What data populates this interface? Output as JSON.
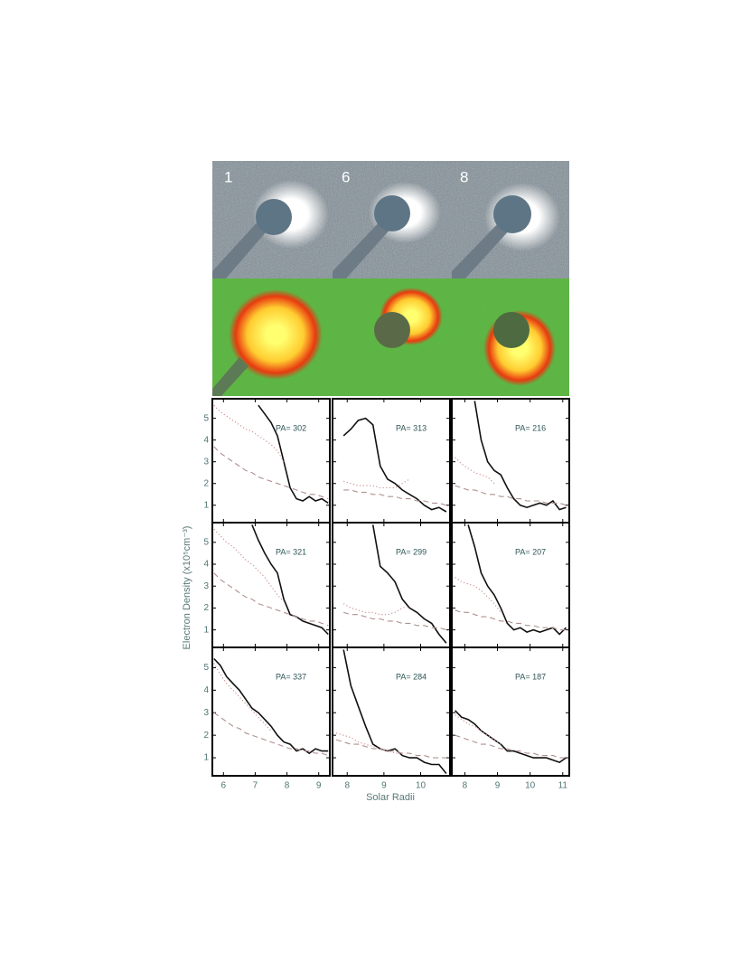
{
  "figure": {
    "image_labels": [
      "1",
      "6",
      "8"
    ],
    "ylabel": "Electron Density (x10⁵cm⁻³)",
    "xlabel": "Solar Radii"
  },
  "chart_data": [
    {
      "type": "line",
      "annotation": "PA= 302",
      "x": [
        5.7,
        5.9,
        6.1,
        6.3,
        6.5,
        6.7,
        6.9,
        7.1,
        7.3,
        7.5,
        7.7,
        7.9,
        8.1,
        8.3,
        8.5,
        8.7,
        8.9,
        9.1,
        9.3
      ],
      "series": [
        {
          "color": "#111111",
          "style": "solid",
          "values": [
            null,
            null,
            null,
            null,
            null,
            null,
            null,
            5.6,
            5.2,
            4.8,
            4.2,
            3.0,
            1.8,
            1.3,
            1.2,
            1.4,
            1.2,
            1.3,
            1.1
          ]
        },
        {
          "color": "#c98a8a",
          "style": "dotted",
          "values": [
            5.6,
            5.3,
            5.1,
            4.9,
            4.7,
            4.5,
            4.4,
            4.2,
            4.0,
            3.8,
            3.5,
            3.0,
            null,
            null,
            null,
            null,
            null,
            null,
            null
          ]
        },
        {
          "color": "#b09090",
          "style": "dashed",
          "values": [
            3.7,
            3.4,
            3.2,
            3.0,
            2.8,
            2.6,
            2.5,
            2.3,
            2.2,
            2.1,
            2.0,
            1.9,
            1.8,
            1.7,
            1.6,
            1.5,
            1.5,
            1.4,
            1.3
          ]
        }
      ],
      "xlim": [
        5.65,
        9.35
      ],
      "ylim": [
        0.2,
        5.9
      ],
      "xticks": [
        6,
        7,
        8,
        9
      ],
      "yticks": [
        1,
        2,
        3,
        4,
        5
      ],
      "show_xtick_labels": false,
      "show_ytick_labels": true
    },
    {
      "type": "line",
      "annotation": "PA= 313",
      "x": [
        7.7,
        7.9,
        8.1,
        8.3,
        8.5,
        8.7,
        8.9,
        9.1,
        9.3,
        9.5,
        9.7,
        9.9,
        10.1,
        10.3,
        10.5,
        10.7
      ],
      "series": [
        {
          "color": "#111111",
          "style": "solid",
          "values": [
            null,
            4.2,
            4.5,
            4.9,
            5.0,
            4.7,
            2.8,
            2.2,
            2.0,
            1.7,
            1.5,
            1.3,
            1.0,
            0.8,
            0.9,
            0.7
          ]
        },
        {
          "color": "#c98a8a",
          "style": "dotted",
          "values": [
            null,
            2.1,
            2.0,
            1.9,
            1.9,
            1.9,
            1.8,
            1.8,
            1.8,
            2.0,
            2.2,
            null,
            null,
            null,
            null,
            null
          ]
        },
        {
          "color": "#b09090",
          "style": "dashed",
          "values": [
            null,
            1.7,
            1.7,
            1.6,
            1.6,
            1.5,
            1.5,
            1.4,
            1.4,
            1.3,
            1.3,
            1.2,
            1.2,
            1.1,
            1.1,
            1.0
          ]
        }
      ],
      "xlim": [
        7.6,
        10.8
      ],
      "ylim": [
        0.2,
        5.9
      ],
      "xticks": [
        8,
        9,
        10
      ],
      "yticks": [
        1,
        2,
        3,
        4,
        5
      ],
      "show_xtick_labels": false,
      "show_ytick_labels": false
    },
    {
      "type": "line",
      "annotation": "PA= 216",
      "x": [
        7.7,
        7.9,
        8.1,
        8.3,
        8.5,
        8.7,
        8.9,
        9.1,
        9.3,
        9.5,
        9.7,
        9.9,
        10.1,
        10.3,
        10.5,
        10.7,
        10.9,
        11.1
      ],
      "series": [
        {
          "color": "#111111",
          "style": "solid",
          "values": [
            null,
            null,
            null,
            5.8,
            4.0,
            3.0,
            2.6,
            2.4,
            1.8,
            1.3,
            1.0,
            0.9,
            1.0,
            1.1,
            1.0,
            1.2,
            0.8,
            0.9
          ]
        },
        {
          "color": "#c98a8a",
          "style": "dotted",
          "values": [
            3.2,
            2.9,
            2.7,
            2.5,
            2.4,
            2.3,
            2.0,
            null,
            null,
            null,
            null,
            null,
            null,
            null,
            null,
            null,
            null,
            null
          ]
        },
        {
          "color": "#b09090",
          "style": "dashed",
          "values": [
            1.9,
            1.8,
            1.7,
            1.7,
            1.6,
            1.5,
            1.5,
            1.4,
            1.4,
            1.3,
            1.3,
            1.2,
            1.2,
            1.2,
            1.1,
            1.1,
            1.1,
            1.0
          ]
        }
      ],
      "xlim": [
        7.6,
        11.2
      ],
      "ylim": [
        0.2,
        5.9
      ],
      "xticks": [
        8,
        9,
        10,
        11
      ],
      "yticks": [
        1,
        2,
        3,
        4,
        5
      ],
      "show_xtick_labels": false,
      "show_ytick_labels": false
    },
    {
      "type": "line",
      "annotation": "PA= 321",
      "x": [
        5.7,
        5.9,
        6.1,
        6.3,
        6.5,
        6.7,
        6.9,
        7.1,
        7.3,
        7.5,
        7.7,
        7.9,
        8.1,
        8.3,
        8.5,
        8.7,
        8.9,
        9.1,
        9.3
      ],
      "series": [
        {
          "color": "#111111",
          "style": "solid",
          "values": [
            null,
            null,
            null,
            null,
            null,
            null,
            5.8,
            5.1,
            4.5,
            4.0,
            3.6,
            2.4,
            1.7,
            1.6,
            1.4,
            1.3,
            1.2,
            1.1,
            0.8
          ]
        },
        {
          "color": "#c98a8a",
          "style": "dotted",
          "values": [
            5.6,
            5.3,
            5.0,
            4.8,
            4.5,
            4.2,
            4.0,
            3.7,
            3.4,
            3.0,
            2.6,
            2.3,
            null,
            null,
            null,
            null,
            null,
            null,
            null
          ]
        },
        {
          "color": "#b09090",
          "style": "dashed",
          "values": [
            3.6,
            3.3,
            3.1,
            2.9,
            2.7,
            2.5,
            2.4,
            2.2,
            2.1,
            2.0,
            1.9,
            1.8,
            1.7,
            1.6,
            1.5,
            1.4,
            1.4,
            1.3,
            1.2
          ]
        }
      ],
      "xlim": [
        5.65,
        9.35
      ],
      "ylim": [
        0.2,
        5.9
      ],
      "xticks": [
        6,
        7,
        8,
        9
      ],
      "yticks": [
        1,
        2,
        3,
        4,
        5
      ],
      "show_xtick_labels": false,
      "show_ytick_labels": true
    },
    {
      "type": "line",
      "annotation": "PA= 299",
      "x": [
        7.7,
        7.9,
        8.1,
        8.3,
        8.5,
        8.7,
        8.9,
        9.1,
        9.3,
        9.5,
        9.7,
        9.9,
        10.1,
        10.3,
        10.5,
        10.7
      ],
      "series": [
        {
          "color": "#111111",
          "style": "solid",
          "values": [
            null,
            null,
            null,
            null,
            null,
            5.8,
            3.9,
            3.6,
            3.2,
            2.4,
            2.0,
            1.8,
            1.5,
            1.3,
            0.8,
            0.4
          ]
        },
        {
          "color": "#c98a8a",
          "style": "dotted",
          "values": [
            null,
            2.2,
            2.0,
            1.9,
            1.8,
            1.8,
            1.7,
            1.7,
            1.8,
            2.0,
            2.1,
            null,
            null,
            null,
            null,
            null
          ]
        },
        {
          "color": "#b09090",
          "style": "dashed",
          "values": [
            null,
            1.8,
            1.7,
            1.7,
            1.6,
            1.5,
            1.5,
            1.4,
            1.4,
            1.3,
            1.3,
            1.2,
            1.2,
            1.1,
            1.1,
            1.0
          ]
        }
      ],
      "xlim": [
        7.6,
        10.8
      ],
      "ylim": [
        0.2,
        5.9
      ],
      "xticks": [
        8,
        9,
        10
      ],
      "yticks": [
        1,
        2,
        3,
        4,
        5
      ],
      "show_xtick_labels": false,
      "show_ytick_labels": false
    },
    {
      "type": "line",
      "annotation": "PA= 207",
      "x": [
        7.7,
        7.9,
        8.1,
        8.3,
        8.5,
        8.7,
        8.9,
        9.1,
        9.3,
        9.5,
        9.7,
        9.9,
        10.1,
        10.3,
        10.5,
        10.7,
        10.9,
        11.1
      ],
      "series": [
        {
          "color": "#111111",
          "style": "solid",
          "values": [
            null,
            null,
            5.8,
            4.8,
            3.6,
            3.0,
            2.6,
            2.0,
            1.3,
            1.0,
            1.1,
            0.9,
            1.0,
            0.9,
            1.0,
            1.1,
            0.8,
            1.1
          ]
        },
        {
          "color": "#c98a8a",
          "style": "dotted",
          "values": [
            3.4,
            3.2,
            3.1,
            3.0,
            2.8,
            2.5,
            2.2,
            1.8,
            null,
            null,
            null,
            null,
            null,
            null,
            null,
            null,
            null,
            null
          ]
        },
        {
          "color": "#b09090",
          "style": "dashed",
          "values": [
            1.9,
            1.8,
            1.8,
            1.7,
            1.6,
            1.6,
            1.5,
            1.4,
            1.4,
            1.3,
            1.3,
            1.2,
            1.2,
            1.1,
            1.1,
            1.1,
            1.0,
            1.0
          ]
        }
      ],
      "xlim": [
        7.6,
        11.2
      ],
      "ylim": [
        0.2,
        5.9
      ],
      "xticks": [
        8,
        9,
        10,
        11
      ],
      "yticks": [
        1,
        2,
        3,
        4,
        5
      ],
      "show_xtick_labels": false,
      "show_ytick_labels": false
    },
    {
      "type": "line",
      "annotation": "PA= 337",
      "x": [
        5.7,
        5.9,
        6.1,
        6.3,
        6.5,
        6.7,
        6.9,
        7.1,
        7.3,
        7.5,
        7.7,
        7.9,
        8.1,
        8.3,
        8.5,
        8.7,
        8.9,
        9.1,
        9.3
      ],
      "series": [
        {
          "color": "#111111",
          "style": "solid",
          "values": [
            5.4,
            5.1,
            4.6,
            4.3,
            4.0,
            3.6,
            3.2,
            3.0,
            2.7,
            2.4,
            2.0,
            1.7,
            1.6,
            1.3,
            1.4,
            1.2,
            1.4,
            1.3,
            1.3
          ]
        },
        {
          "color": "#c98a8a",
          "style": "dotted",
          "values": [
            5.2,
            4.7,
            4.3,
            4.0,
            3.7,
            3.4,
            3.1,
            2.8,
            2.5,
            2.2,
            null,
            null,
            null,
            null,
            null,
            null,
            null,
            null,
            null
          ]
        },
        {
          "color": "#b09090",
          "style": "dashed",
          "values": [
            3.0,
            2.8,
            2.6,
            2.4,
            2.3,
            2.1,
            2.0,
            1.9,
            1.8,
            1.7,
            1.6,
            1.5,
            1.4,
            1.4,
            1.3,
            1.3,
            1.2,
            1.2,
            1.1
          ]
        }
      ],
      "xlim": [
        5.65,
        9.35
      ],
      "ylim": [
        0.2,
        5.9
      ],
      "xticks": [
        6,
        7,
        8,
        9
      ],
      "yticks": [
        1,
        2,
        3,
        4,
        5
      ],
      "show_xtick_labels": true,
      "show_ytick_labels": true
    },
    {
      "type": "line",
      "annotation": "PA= 284",
      "x": [
        7.7,
        7.9,
        8.1,
        8.3,
        8.5,
        8.7,
        8.9,
        9.1,
        9.3,
        9.5,
        9.7,
        9.9,
        10.1,
        10.3,
        10.5,
        10.7
      ],
      "series": [
        {
          "color": "#111111",
          "style": "solid",
          "values": [
            null,
            5.8,
            4.2,
            3.3,
            2.4,
            1.6,
            1.4,
            1.3,
            1.4,
            1.1,
            1.0,
            1.0,
            0.8,
            0.7,
            0.7,
            0.3
          ]
        },
        {
          "color": "#c98a8a",
          "style": "dotted",
          "values": [
            2.1,
            2.0,
            1.9,
            1.7,
            1.6,
            1.5,
            1.4,
            1.3,
            1.2,
            1.2,
            null,
            null,
            null,
            null,
            null,
            null
          ]
        },
        {
          "color": "#b09090",
          "style": "dashed",
          "values": [
            1.8,
            1.7,
            1.6,
            1.6,
            1.5,
            1.4,
            1.4,
            1.3,
            1.3,
            1.2,
            1.2,
            1.1,
            1.1,
            1.0,
            1.0,
            1.0
          ]
        }
      ],
      "xlim": [
        7.6,
        10.8
      ],
      "ylim": [
        0.2,
        5.9
      ],
      "xticks": [
        8,
        9,
        10
      ],
      "yticks": [
        1,
        2,
        3,
        4,
        5
      ],
      "show_xtick_labels": true,
      "show_ytick_labels": false
    },
    {
      "type": "line",
      "annotation": "PA= 187",
      "x": [
        7.7,
        7.9,
        8.1,
        8.3,
        8.5,
        8.7,
        8.9,
        9.1,
        9.3,
        9.5,
        9.7,
        9.9,
        10.1,
        10.3,
        10.5,
        10.7,
        10.9,
        11.1
      ],
      "series": [
        {
          "color": "#111111",
          "style": "solid",
          "values": [
            3.1,
            2.8,
            2.7,
            2.5,
            2.2,
            2.0,
            1.8,
            1.6,
            1.3,
            1.3,
            1.2,
            1.1,
            1.0,
            1.0,
            1.0,
            0.9,
            0.8,
            1.0
          ]
        },
        {
          "color": "#c98a8a",
          "style": "dotted",
          "values": [
            2.9,
            2.7,
            2.5,
            2.4,
            2.2,
            2.0,
            1.8,
            1.6,
            null,
            null,
            null,
            null,
            null,
            null,
            null,
            null,
            null,
            null
          ]
        },
        {
          "color": "#b09090",
          "style": "dashed",
          "values": [
            2.0,
            1.9,
            1.8,
            1.7,
            1.6,
            1.6,
            1.5,
            1.4,
            1.4,
            1.3,
            1.3,
            1.2,
            1.2,
            1.1,
            1.1,
            1.1,
            1.0,
            1.0
          ]
        }
      ],
      "xlim": [
        7.6,
        11.2
      ],
      "ylim": [
        0.2,
        5.9
      ],
      "xticks": [
        8,
        9,
        10,
        11
      ],
      "yticks": [
        1,
        2,
        3,
        4,
        5
      ],
      "show_xtick_labels": true,
      "show_ytick_labels": false
    }
  ]
}
